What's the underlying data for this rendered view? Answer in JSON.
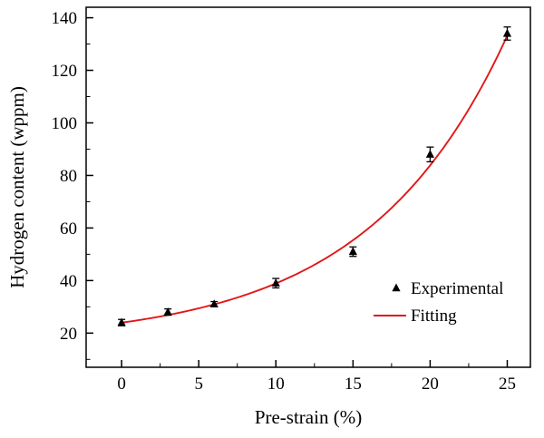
{
  "figure": {
    "background": "#ffffff",
    "frame_color": "#000000"
  },
  "chart_data": {
    "type": "scatter",
    "title": "",
    "xlabel": "Pre-strain (%)",
    "ylabel": "Hydrogen content (wppm)",
    "xlim": [
      -2.3,
      26.5
    ],
    "ylim": [
      7,
      144
    ],
    "x_ticks": [
      0,
      5,
      10,
      15,
      20,
      25
    ],
    "y_ticks": [
      20,
      40,
      60,
      80,
      100,
      120,
      140
    ],
    "x_minor_step": 2.5,
    "y_minor_step": 10,
    "grid": false,
    "series": [
      {
        "name": "Experimental",
        "type": "scatter",
        "marker": "triangle-filled",
        "color": "#000000",
        "x": [
          0,
          3,
          6,
          10,
          15,
          20,
          25
        ],
        "y": [
          24,
          28,
          31,
          39,
          51,
          88,
          134
        ],
        "yerr": [
          1.2,
          1.2,
          1.0,
          1.8,
          1.8,
          2.8,
          2.5
        ]
      },
      {
        "name": "Fitting",
        "type": "line",
        "color": "#e21717",
        "fit": {
          "model": "y0 + A*exp(b*x)",
          "y0": 16.5,
          "A": 7.46,
          "b": 0.11,
          "x_range": [
            0,
            25
          ]
        }
      }
    ],
    "legend": {
      "position": "inside-lower-right",
      "entries": [
        "Experimental",
        "Fitting"
      ]
    }
  }
}
